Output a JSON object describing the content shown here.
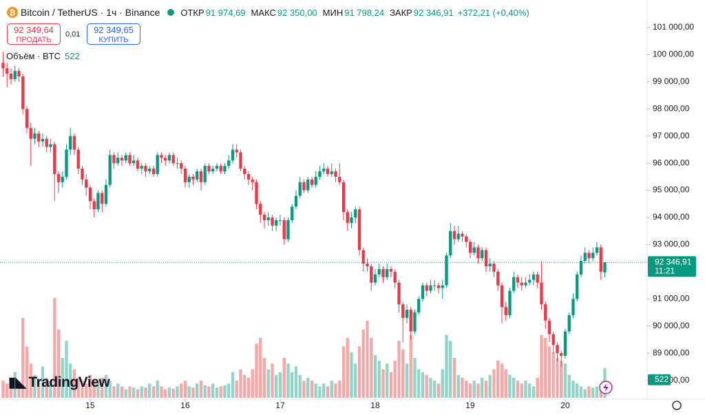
{
  "chart_data": {
    "type": "candlestick",
    "title": "Bitcoin / TetherUS · 1ч · Binance",
    "ohlc_names": {
      "open": "ОТКР",
      "high": "МАКС",
      "low": "МИН",
      "close": "ЗАКР"
    },
    "ohlc_labels": {
      "open": "91 974,69",
      "high": "92 350,00",
      "low": "91 798,24",
      "close": "92 346,91"
    },
    "change": "+372,21 (+0,40%)",
    "sell": {
      "price": "92 349,64",
      "label": "ПРОДАТЬ"
    },
    "spread": "0,01",
    "buy": {
      "price": "92 349,65",
      "label": "КУПИТЬ"
    },
    "volume_title": "Объём · BTC",
    "volume_label": "522",
    "countdown": "11:21",
    "logo": "TradingView",
    "up_color": "#089981",
    "down_color": "#f23645",
    "up_volume_color": "#93d3c8",
    "down_volume_color": "#f7a8a6",
    "grid": false,
    "xlim": [
      -0.78,
      162.7
    ],
    "ylim": [
      87305,
      102014
    ],
    "volume_lim": [
      0,
      7000
    ],
    "xticks": [
      {
        "value": 22,
        "label": "15"
      },
      {
        "value": 46,
        "label": "16"
      },
      {
        "value": 70,
        "label": "17"
      },
      {
        "value": 94,
        "label": "18"
      },
      {
        "value": 118,
        "label": "19"
      },
      {
        "value": 142,
        "label": "20"
      }
    ],
    "yticks": [
      {
        "value": 101000,
        "label": "101 000,00"
      },
      {
        "value": 100000,
        "label": "100 000,00"
      },
      {
        "value": 99000,
        "label": "99 000,00"
      },
      {
        "value": 98000,
        "label": "98 000,00"
      },
      {
        "value": 97000,
        "label": "97 000,00"
      },
      {
        "value": 96000,
        "label": "96 000,00"
      },
      {
        "value": 95000,
        "label": "95 000,00"
      },
      {
        "value": 94000,
        "label": "94 000,00"
      },
      {
        "value": 93000,
        "label": "93 000,00"
      },
      {
        "value": 91000,
        "label": "91 000,00"
      },
      {
        "value": 90000,
        "label": "90 000,00"
      },
      {
        "value": 89000,
        "label": "89 000,00"
      },
      {
        "value": 88000,
        "label": "88 000,00"
      }
    ],
    "open": [
      99700,
      99500,
      99300,
      99100,
      99400,
      99200,
      98000,
      97300,
      96900,
      97100,
      96800,
      96900,
      96600,
      96700,
      95600,
      95300,
      95500,
      96500,
      97000,
      96500,
      95800,
      95400,
      95100,
      94600,
      94300,
      94900,
      94500,
      95200,
      96300,
      96000,
      96200,
      96100,
      96300,
      96000,
      96100,
      95800,
      95900,
      95700,
      95800,
      95600,
      96300,
      96200,
      96100,
      96300,
      96000,
      96000,
      95800,
      95300,
      95500,
      95400,
      95700,
      95300,
      95900,
      95700,
      95800,
      95900,
      95700,
      95900,
      96100,
      96500,
      96400,
      95800,
      95600,
      95400,
      95300,
      94500,
      94100,
      93900,
      94000,
      93700,
      93900,
      93900,
      93200,
      93900,
      94400,
      94800,
      95300,
      95000,
      95400,
      95200,
      95500,
      95700,
      95800,
      95600,
      95700,
      95500,
      95300,
      94200,
      93800,
      94000,
      94300,
      92800,
      92300,
      92200,
      91600,
      91900,
      92100,
      91800,
      92100,
      92000,
      91600,
      90800,
      90300,
      90600,
      89800,
      90500,
      91000,
      91500,
      91300,
      91500,
      91500,
      91400,
      91500,
      92600,
      93500,
      93200,
      93400,
      93300,
      93100,
      92700,
      92900,
      92500,
      92800,
      92200,
      92300,
      92000,
      91500,
      90700,
      90400,
      91300,
      91800,
      91600,
      91500,
      91600,
      91700,
      91900,
      91600,
      90800,
      90200,
      89700,
      89300,
      89000,
      88900,
      89800,
      90400,
      91000,
      91900,
      92400,
      92700,
      92500,
      92700,
      92900,
      91974.69
    ],
    "high": [
      100100,
      99700,
      99500,
      99600,
      99500,
      99300,
      98100,
      97500,
      97300,
      97200,
      97100,
      97000,
      96900,
      96800,
      95700,
      95700,
      96700,
      97300,
      97100,
      96600,
      95900,
      95600,
      95200,
      94700,
      95000,
      95000,
      95400,
      96500,
      96400,
      96400,
      96300,
      96400,
      96400,
      96300,
      96200,
      96000,
      96000,
      95900,
      95900,
      96400,
      96400,
      96300,
      96400,
      96400,
      96200,
      96100,
      95900,
      95600,
      95600,
      95800,
      95800,
      96000,
      96000,
      95900,
      96000,
      96000,
      96000,
      96300,
      96700,
      96700,
      96500,
      95900,
      95700,
      95500,
      95400,
      94600,
      94200,
      94200,
      94100,
      94000,
      94100,
      94000,
      94000,
      94500,
      95000,
      95500,
      95400,
      95500,
      95500,
      95700,
      95900,
      96000,
      95900,
      96000,
      95800,
      96000,
      95400,
      94300,
      94200,
      94400,
      94400,
      92900,
      92500,
      92300,
      92100,
      92300,
      92200,
      92300,
      92200,
      92100,
      91700,
      90900,
      90800,
      90700,
      90600,
      91100,
      91600,
      91600,
      91700,
      91700,
      91600,
      91700,
      92700,
      93800,
      93700,
      93700,
      93500,
      93400,
      93200,
      93100,
      93000,
      92900,
      92900,
      92500,
      92400,
      92100,
      91600,
      90900,
      91400,
      92000,
      91900,
      91800,
      91800,
      91900,
      92000,
      92000,
      92400,
      90900,
      90300,
      89800,
      89400,
      89100,
      89900,
      90500,
      91200,
      92000,
      92600,
      92900,
      92800,
      92900,
      93100,
      93000,
      92350
    ],
    "low": [
      99200,
      98800,
      98900,
      99000,
      99000,
      97800,
      97100,
      95900,
      96700,
      96600,
      96600,
      96400,
      96400,
      94600,
      94900,
      95100,
      95400,
      96300,
      96300,
      95600,
      95200,
      94800,
      94300,
      94000,
      94200,
      94200,
      94400,
      95100,
      95800,
      95900,
      95900,
      96000,
      95900,
      95900,
      95700,
      95600,
      95500,
      95600,
      95500,
      95500,
      96000,
      95900,
      96000,
      95900,
      95800,
      95600,
      95100,
      95100,
      95200,
      95300,
      95000,
      95200,
      95600,
      95600,
      95700,
      95600,
      95600,
      95800,
      96000,
      96200,
      95700,
      95400,
      95200,
      95000,
      94300,
      93800,
      93600,
      93700,
      93500,
      93500,
      93700,
      93000,
      93100,
      93800,
      94300,
      94700,
      94900,
      94900,
      95100,
      95100,
      95400,
      95600,
      95500,
      95500,
      95300,
      95200,
      93900,
      93500,
      93600,
      93800,
      92600,
      92000,
      92000,
      91300,
      91500,
      91800,
      91600,
      91700,
      91800,
      91400,
      90500,
      89400,
      90100,
      89500,
      89700,
      90400,
      90900,
      91100,
      91200,
      91300,
      91200,
      91000,
      91400,
      92500,
      93000,
      93100,
      93100,
      92900,
      92500,
      92600,
      92300,
      92400,
      92000,
      92000,
      91800,
      91300,
      90100,
      90200,
      90300,
      91200,
      91400,
      91300,
      91400,
      91500,
      91500,
      91400,
      90600,
      89900,
      89400,
      89000,
      88700,
      88500,
      88800,
      89700,
      90300,
      90900,
      91800,
      92300,
      92300,
      92400,
      92600,
      91700,
      91798.24
    ],
    "close": [
      99500,
      99300,
      99100,
      99400,
      99200,
      98000,
      97300,
      96900,
      97100,
      96800,
      96900,
      96600,
      96700,
      95600,
      95300,
      95500,
      96500,
      97000,
      96500,
      95800,
      95400,
      95100,
      94600,
      94300,
      94900,
      94500,
      95200,
      96300,
      96000,
      96200,
      96100,
      96300,
      96000,
      96100,
      95800,
      95900,
      95700,
      95800,
      95600,
      96300,
      96200,
      96100,
      96300,
      96000,
      96000,
      95800,
      95300,
      95500,
      95400,
      95700,
      95300,
      95900,
      95700,
      95800,
      95900,
      95700,
      95900,
      96100,
      96500,
      96400,
      95800,
      95600,
      95400,
      95300,
      94500,
      94100,
      93900,
      94000,
      93700,
      93900,
      93900,
      93200,
      93900,
      94400,
      94800,
      95300,
      95000,
      95400,
      95200,
      95500,
      95700,
      95800,
      95600,
      95700,
      95500,
      95300,
      94200,
      93800,
      94000,
      94300,
      92800,
      92300,
      92200,
      91600,
      91900,
      92100,
      91800,
      92100,
      92000,
      91600,
      90800,
      90300,
      90600,
      89800,
      90500,
      91000,
      91500,
      91300,
      91500,
      91500,
      91400,
      91500,
      92600,
      93500,
      93200,
      93400,
      93300,
      93100,
      92700,
      92900,
      92500,
      92800,
      92200,
      92300,
      92000,
      91500,
      90700,
      90400,
      91300,
      91800,
      91600,
      91500,
      91600,
      91700,
      91900,
      91600,
      90800,
      90200,
      89700,
      89300,
      89000,
      88900,
      89800,
      90400,
      91000,
      91900,
      92400,
      92700,
      92500,
      92700,
      92900,
      92000,
      92346.91
    ],
    "volume": [
      300,
      250,
      200,
      450,
      250,
      1400,
      900,
      600,
      400,
      300,
      550,
      350,
      300,
      1750,
      1200,
      700,
      1000,
      600,
      500,
      350,
      300,
      250,
      400,
      300,
      250,
      350,
      400,
      300,
      200,
      250,
      200,
      150,
      200,
      180,
      150,
      200,
      180,
      250,
      200,
      300,
      200,
      150,
      180,
      160,
      200,
      250,
      300,
      200,
      180,
      250,
      300,
      220,
      200,
      250,
      180,
      200,
      220,
      250,
      450,
      300,
      500,
      400,
      350,
      500,
      950,
      1050,
      700,
      500,
      600,
      400,
      450,
      700,
      600,
      450,
      550,
      400,
      300,
      350,
      300,
      250,
      200,
      250,
      200,
      300,
      250,
      300,
      900,
      1050,
      800,
      600,
      900,
      1200,
      1350,
      1050,
      750,
      650,
      500,
      600,
      450,
      650,
      1000,
      850,
      600,
      1100,
      700,
      500,
      450,
      400,
      350,
      300,
      250,
      500,
      1100,
      1000,
      700,
      400,
      350,
      300,
      250,
      300,
      250,
      350,
      300,
      400,
      500,
      650,
      600,
      500,
      400,
      350,
      300,
      250,
      300,
      250,
      200,
      350,
      1100,
      1050,
      900,
      800,
      700,
      650,
      600,
      400,
      300,
      250,
      200,
      150,
      200,
      180,
      200,
      150,
      522
    ]
  }
}
